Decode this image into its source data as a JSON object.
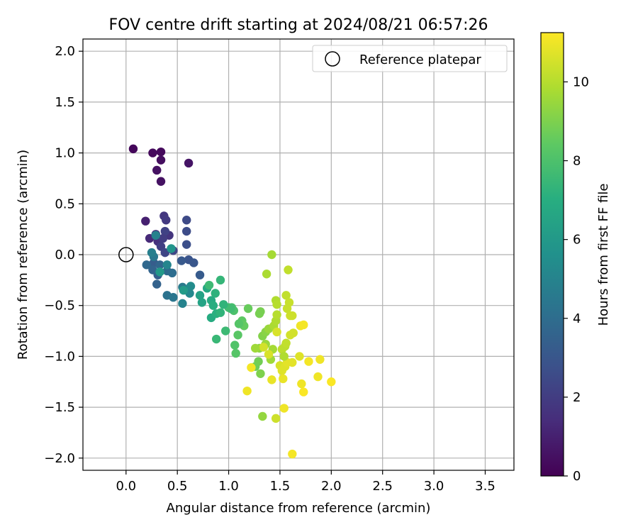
{
  "chart_data": {
    "type": "scatter",
    "title": "FOV centre drift starting at 2024/08/21 06:57:26",
    "xlabel": "Angular distance from reference (arcmin)",
    "ylabel": "Rotation from reference (arcmin)",
    "xlim": [
      -0.42,
      3.78
    ],
    "ylim": [
      -2.12,
      2.12
    ],
    "xticks": [
      "0.0",
      "0.5",
      "1.0",
      "1.5",
      "2.0",
      "2.5",
      "3.0",
      "3.5"
    ],
    "yticks": [
      "2.0",
      "1.5",
      "1.0",
      "0.5",
      "0.0",
      "−0.5",
      "−1.0",
      "−1.5",
      "−2.0"
    ],
    "xtick_values": [
      0.0,
      0.5,
      1.0,
      1.5,
      2.0,
      2.5,
      3.0,
      3.5
    ],
    "ytick_values": [
      2.0,
      1.5,
      1.0,
      0.5,
      0.0,
      -0.5,
      -1.0,
      -1.5,
      -2.0
    ],
    "grid": true,
    "legend": {
      "placement": "upper right",
      "entries": [
        "Reference platepar"
      ]
    },
    "reference_point": {
      "x": 0.0,
      "y": 0.0,
      "marker": "open circle"
    },
    "colormap": "viridis",
    "colorbar": {
      "label": "Hours from first FF file",
      "range": [
        0,
        11.25
      ],
      "ticks": [
        "0",
        "2",
        "4",
        "6",
        "8",
        "10"
      ],
      "tick_values": [
        0,
        2,
        4,
        6,
        8,
        10
      ]
    },
    "points": [
      {
        "x": 0.07,
        "y": 1.04,
        "c": 0.2
      },
      {
        "x": 0.26,
        "y": 1.0,
        "c": 0.3
      },
      {
        "x": 0.34,
        "y": 1.01,
        "c": 0.3
      },
      {
        "x": 0.34,
        "y": 0.93,
        "c": 0.4
      },
      {
        "x": 0.3,
        "y": 0.83,
        "c": 0.5
      },
      {
        "x": 0.34,
        "y": 0.72,
        "c": 0.5
      },
      {
        "x": 0.61,
        "y": 0.9,
        "c": 0.6
      },
      {
        "x": 0.19,
        "y": 0.33,
        "c": 1.0
      },
      {
        "x": 0.23,
        "y": 0.16,
        "c": 1.3
      },
      {
        "x": 0.37,
        "y": 0.38,
        "c": 1.8
      },
      {
        "x": 0.39,
        "y": 0.34,
        "c": 1.9
      },
      {
        "x": 0.29,
        "y": 0.2,
        "c": 1.5
      },
      {
        "x": 0.31,
        "y": 0.13,
        "c": 1.6
      },
      {
        "x": 0.42,
        "y": 0.19,
        "c": 1.7
      },
      {
        "x": 0.38,
        "y": 0.23,
        "c": 2.2
      },
      {
        "x": 0.36,
        "y": 0.16,
        "c": 2.0
      },
      {
        "x": 0.34,
        "y": 0.08,
        "c": 2.1
      },
      {
        "x": 0.38,
        "y": 0.02,
        "c": 2.3
      },
      {
        "x": 0.46,
        "y": 0.04,
        "c": 2.4
      },
      {
        "x": 0.59,
        "y": 0.34,
        "c": 2.5
      },
      {
        "x": 0.59,
        "y": 0.23,
        "c": 2.6
      },
      {
        "x": 0.59,
        "y": 0.1,
        "c": 2.7
      },
      {
        "x": 0.61,
        "y": -0.05,
        "c": 2.9
      },
      {
        "x": 0.66,
        "y": -0.08,
        "c": 3.0
      },
      {
        "x": 0.54,
        "y": -0.06,
        "c": 3.1
      },
      {
        "x": 0.72,
        "y": -0.2,
        "c": 3.2
      },
      {
        "x": 0.27,
        "y": -0.08,
        "c": 3.3
      },
      {
        "x": 0.31,
        "y": -0.2,
        "c": 3.4
      },
      {
        "x": 0.3,
        "y": -0.29,
        "c": 3.5
      },
      {
        "x": 0.26,
        "y": -0.15,
        "c": 3.6
      },
      {
        "x": 0.2,
        "y": -0.1,
        "c": 3.8
      },
      {
        "x": 0.33,
        "y": -0.1,
        "c": 3.7
      },
      {
        "x": 0.4,
        "y": -0.16,
        "c": 3.9
      },
      {
        "x": 0.45,
        "y": -0.18,
        "c": 4.0
      },
      {
        "x": 0.4,
        "y": -0.4,
        "c": 4.2
      },
      {
        "x": 0.46,
        "y": -0.42,
        "c": 4.4
      },
      {
        "x": 0.55,
        "y": -0.32,
        "c": 4.6
      },
      {
        "x": 0.27,
        "y": -0.02,
        "c": 4.5
      },
      {
        "x": 0.25,
        "y": 0.02,
        "c": 4.8
      },
      {
        "x": 0.29,
        "y": 0.19,
        "c": 4.9
      },
      {
        "x": 0.55,
        "y": -0.48,
        "c": 5.0
      },
      {
        "x": 0.62,
        "y": -0.38,
        "c": 5.2
      },
      {
        "x": 0.63,
        "y": -0.31,
        "c": 5.4
      },
      {
        "x": 0.4,
        "y": -0.1,
        "c": 5.1
      },
      {
        "x": 0.44,
        "y": 0.06,
        "c": 5.8
      },
      {
        "x": 0.33,
        "y": -0.17,
        "c": 6.0
      },
      {
        "x": 0.56,
        "y": -0.35,
        "c": 6.1
      },
      {
        "x": 0.72,
        "y": -0.4,
        "c": 6.4
      },
      {
        "x": 0.74,
        "y": -0.47,
        "c": 6.5
      },
      {
        "x": 0.79,
        "y": -0.33,
        "c": 6.7
      },
      {
        "x": 0.83,
        "y": -0.45,
        "c": 6.8
      },
      {
        "x": 0.83,
        "y": -0.62,
        "c": 6.9
      },
      {
        "x": 0.85,
        "y": -0.5,
        "c": 7.0
      },
      {
        "x": 0.88,
        "y": -0.58,
        "c": 7.1
      },
      {
        "x": 0.87,
        "y": -0.38,
        "c": 7.2
      },
      {
        "x": 0.92,
        "y": -0.57,
        "c": 7.3
      },
      {
        "x": 0.92,
        "y": -0.25,
        "c": 7.4
      },
      {
        "x": 0.81,
        "y": -0.3,
        "c": 7.6
      },
      {
        "x": 0.88,
        "y": -0.83,
        "c": 7.5
      },
      {
        "x": 0.97,
        "y": -0.75,
        "c": 7.6
      },
      {
        "x": 1.0,
        "y": -0.52,
        "c": 7.8
      },
      {
        "x": 1.03,
        "y": -0.52,
        "c": 7.9
      },
      {
        "x": 1.05,
        "y": -0.55,
        "c": 8.0
      },
      {
        "x": 1.06,
        "y": -0.89,
        "c": 8.1
      },
      {
        "x": 1.07,
        "y": -0.97,
        "c": 8.2
      },
      {
        "x": 1.09,
        "y": -0.79,
        "c": 8.3
      },
      {
        "x": 1.13,
        "y": -0.65,
        "c": 8.4
      },
      {
        "x": 1.15,
        "y": -0.7,
        "c": 8.5
      },
      {
        "x": 1.19,
        "y": -0.53,
        "c": 8.6
      },
      {
        "x": 1.26,
        "y": -1.1,
        "c": 8.7
      },
      {
        "x": 1.29,
        "y": -1.05,
        "c": 8.8
      },
      {
        "x": 1.31,
        "y": -0.56,
        "c": 8.9
      },
      {
        "x": 1.31,
        "y": -1.17,
        "c": 9.0
      },
      {
        "x": 1.33,
        "y": -0.8,
        "c": 9.1
      },
      {
        "x": 1.36,
        "y": -0.76,
        "c": 9.2
      },
      {
        "x": 1.3,
        "y": -0.92,
        "c": 9.3
      },
      {
        "x": 1.33,
        "y": -1.59,
        "c": 9.4
      },
      {
        "x": 1.36,
        "y": -0.88,
        "c": 9.5
      },
      {
        "x": 1.39,
        "y": -0.73,
        "c": 9.5
      },
      {
        "x": 1.41,
        "y": -1.03,
        "c": 9.6
      },
      {
        "x": 1.43,
        "y": -0.93,
        "c": 9.7
      },
      {
        "x": 1.44,
        "y": -0.7,
        "c": 9.8
      },
      {
        "x": 1.46,
        "y": -0.45,
        "c": 9.9
      },
      {
        "x": 1.47,
        "y": -0.49,
        "c": 10.0
      },
      {
        "x": 1.46,
        "y": -0.65,
        "c": 9.9
      },
      {
        "x": 1.47,
        "y": -0.59,
        "c": 10.0
      },
      {
        "x": 1.42,
        "y": 0.0,
        "c": 9.7
      },
      {
        "x": 1.37,
        "y": -0.19,
        "c": 9.8
      },
      {
        "x": 1.52,
        "y": -0.93,
        "c": 10.1
      },
      {
        "x": 1.55,
        "y": -0.9,
        "c": 10.1
      },
      {
        "x": 1.56,
        "y": -0.4,
        "c": 10.2
      },
      {
        "x": 1.58,
        "y": -0.15,
        "c": 10.2
      },
      {
        "x": 1.57,
        "y": -0.53,
        "c": 10.3
      },
      {
        "x": 1.59,
        "y": -0.47,
        "c": 10.3
      },
      {
        "x": 1.6,
        "y": -0.6,
        "c": 10.4
      },
      {
        "x": 1.62,
        "y": -0.6,
        "c": 10.4
      },
      {
        "x": 1.6,
        "y": -0.79,
        "c": 10.5
      },
      {
        "x": 1.63,
        "y": -0.77,
        "c": 10.5
      },
      {
        "x": 1.47,
        "y": -0.76,
        "c": 10.6
      },
      {
        "x": 1.5,
        "y": -1.09,
        "c": 10.6
      },
      {
        "x": 1.52,
        "y": -1.14,
        "c": 10.7
      },
      {
        "x": 1.55,
        "y": -1.1,
        "c": 10.7
      },
      {
        "x": 1.57,
        "y": -1.06,
        "c": 10.8
      },
      {
        "x": 1.62,
        "y": -1.06,
        "c": 10.8
      },
      {
        "x": 1.53,
        "y": -1.22,
        "c": 10.9
      },
      {
        "x": 1.42,
        "y": -1.23,
        "c": 10.9
      },
      {
        "x": 1.39,
        "y": -0.98,
        "c": 10.6
      },
      {
        "x": 1.34,
        "y": -0.91,
        "c": 10.5
      },
      {
        "x": 1.46,
        "y": -1.61,
        "c": 10.4
      },
      {
        "x": 1.54,
        "y": -1.51,
        "c": 11.0
      },
      {
        "x": 1.62,
        "y": -1.96,
        "c": 11.1
      },
      {
        "x": 1.7,
        "y": -0.7,
        "c": 11.0
      },
      {
        "x": 1.73,
        "y": -0.69,
        "c": 11.1
      },
      {
        "x": 1.69,
        "y": -1.0,
        "c": 10.7
      },
      {
        "x": 1.71,
        "y": -1.27,
        "c": 11.0
      },
      {
        "x": 1.73,
        "y": -1.35,
        "c": 11.2
      },
      {
        "x": 1.78,
        "y": -1.05,
        "c": 11.1
      },
      {
        "x": 1.87,
        "y": -1.2,
        "c": 11.0
      },
      {
        "x": 1.89,
        "y": -1.03,
        "c": 11.0
      },
      {
        "x": 2.0,
        "y": -1.25,
        "c": 11.2
      },
      {
        "x": 1.22,
        "y": -1.11,
        "c": 11.1
      },
      {
        "x": 1.18,
        "y": -1.34,
        "c": 11.0
      },
      {
        "x": 1.56,
        "y": -0.87,
        "c": 10.2
      },
      {
        "x": 1.54,
        "y": -1.0,
        "c": 9.9
      },
      {
        "x": 1.26,
        "y": -0.92,
        "c": 9.6
      },
      {
        "x": 1.3,
        "y": -0.58,
        "c": 8.9
      },
      {
        "x": 1.02,
        "y": -0.53,
        "c": 7.7
      },
      {
        "x": 0.95,
        "y": -0.49,
        "c": 7.3
      },
      {
        "x": 1.1,
        "y": -0.68,
        "c": 8.2
      }
    ]
  }
}
